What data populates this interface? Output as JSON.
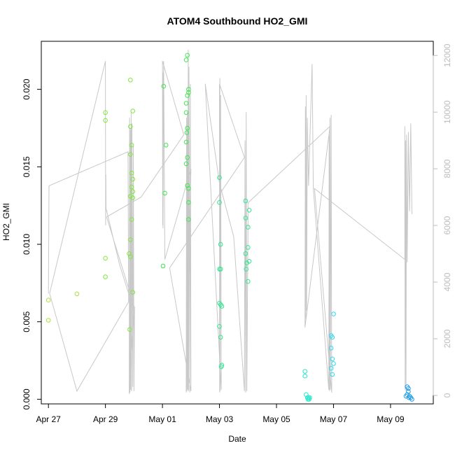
{
  "chart_data": {
    "type": "scatter",
    "title": "ATOM4 Southbound HO2_GMI",
    "xlabel": "Date",
    "ylabel": "HO2_GMI",
    "xlim": [
      "2018-04-26T18:00",
      "2018-05-10T12:00"
    ],
    "ylim": [
      -0.0003,
      0.0231
    ],
    "y2lim": [
      -300,
      12500
    ],
    "grid": false,
    "legend": "none",
    "x_ticks": [
      {
        "date": "2018-04-27",
        "label": "Apr 27"
      },
      {
        "date": "2018-04-29",
        "label": "Apr 29"
      },
      {
        "date": "2018-05-01",
        "label": "May 01"
      },
      {
        "date": "2018-05-03",
        "label": "May 03"
      },
      {
        "date": "2018-05-05",
        "label": "May 05"
      },
      {
        "date": "2018-05-07",
        "label": "May 07"
      },
      {
        "date": "2018-05-09",
        "label": "May 09"
      }
    ],
    "y_ticks": [
      {
        "value": 0.0,
        "label": "0.000"
      },
      {
        "value": 0.005,
        "label": "0.005"
      },
      {
        "value": 0.01,
        "label": "0.010"
      },
      {
        "value": 0.015,
        "label": "0.015"
      },
      {
        "value": 0.02,
        "label": "0.020"
      }
    ],
    "y2_ticks": [
      {
        "value": 0,
        "label": "0"
      },
      {
        "value": 2000,
        "label": "2000"
      },
      {
        "value": 4000,
        "label": "4000"
      },
      {
        "value": 6000,
        "label": "6000"
      },
      {
        "value": 8000,
        "label": "8000"
      },
      {
        "value": 10000,
        "label": "10000"
      },
      {
        "value": 12000,
        "label": "12000"
      }
    ],
    "colors": {
      "altitude_line": "#c8c8c8",
      "axis": "#000000",
      "right_axis": "#bdbdbd",
      "point_palette": [
        "#a8e23c",
        "#7fe83a",
        "#3ee84e",
        "#2ee890",
        "#26e8c8",
        "#2ed8f0",
        "#1a9ae8"
      ]
    },
    "altitude_series": [
      [
        "2018-04-27T00:00",
        3600
      ],
      [
        "2018-04-27T00:30",
        7400
      ],
      [
        "2018-04-29T19:00",
        8600
      ],
      [
        "2018-04-29T19:30",
        3300
      ],
      [
        "2018-04-28T00:00",
        150
      ],
      [
        "2018-04-27T01:00",
        3600
      ],
      [
        "2018-04-29T00:00",
        11800
      ],
      [
        "2018-04-29T00:10",
        6000
      ],
      [
        "2018-04-29T00:20",
        7800
      ],
      [
        "2018-04-29T00:30",
        6600
      ],
      [
        "2018-04-29T12:00",
        4600
      ],
      [
        "2018-04-30T00:00",
        3000
      ],
      [
        "2018-04-29T20:00",
        50
      ],
      [
        "2018-04-29T20:20",
        9800
      ],
      [
        "2018-04-29T20:40",
        100
      ],
      [
        "2018-04-29T21:00",
        9400
      ],
      [
        "2018-04-29T21:20",
        200
      ],
      [
        "2018-04-29T21:40",
        10000
      ],
      [
        "2018-04-29T22:00",
        150
      ],
      [
        "2018-04-29T22:20",
        9600
      ],
      [
        "2018-04-29T23:00",
        300
      ],
      [
        "2018-04-29T23:30",
        8800
      ],
      [
        "2018-04-30T00:00",
        150
      ],
      [
        "2018-04-30T00:30",
        3100
      ],
      [
        "2018-04-29T01:00",
        6300
      ],
      [
        "2018-04-30T06:00",
        7000
      ],
      [
        "2018-05-01T18:00",
        9200
      ],
      [
        "2018-05-01T00:00",
        11800
      ],
      [
        "2018-05-01T00:10",
        6000
      ],
      [
        "2018-05-01T00:20",
        11400
      ],
      [
        "2018-05-01T00:30",
        5900
      ],
      [
        "2018-05-01T01:00",
        11800
      ],
      [
        "2018-05-01T02:00",
        4800
      ],
      [
        "2018-05-02T00:00",
        8000
      ],
      [
        "2018-05-01T20:00",
        100
      ],
      [
        "2018-05-01T20:20",
        9800
      ],
      [
        "2018-05-01T20:40",
        150
      ],
      [
        "2018-05-01T21:00",
        10000
      ],
      [
        "2018-05-01T21:20",
        200
      ],
      [
        "2018-05-01T21:40",
        12200
      ],
      [
        "2018-05-01T22:00",
        150
      ],
      [
        "2018-05-01T22:20",
        11600
      ],
      [
        "2018-05-01T23:00",
        100
      ],
      [
        "2018-05-01T23:30",
        11000
      ],
      [
        "2018-05-02T00:00",
        150
      ],
      [
        "2018-05-01T06:00",
        4500
      ],
      [
        "2018-05-03T21:00",
        8400
      ],
      [
        "2018-05-03T00:00",
        11000
      ],
      [
        "2018-05-03T00:10",
        100
      ],
      [
        "2018-05-03T00:20",
        11200
      ],
      [
        "2018-05-03T00:30",
        150
      ],
      [
        "2018-05-03T01:00",
        10600
      ],
      [
        "2018-05-03T01:30",
        200
      ],
      [
        "2018-05-02T12:00",
        11000
      ],
      [
        "2018-05-03T00:00",
        7500
      ],
      [
        "2018-05-03T12:00",
        5600
      ],
      [
        "2018-05-03T21:00",
        150
      ],
      [
        "2018-05-03T21:30",
        9000
      ],
      [
        "2018-05-03T22:00",
        100
      ],
      [
        "2018-05-03T22:30",
        10000
      ],
      [
        "2018-05-03T23:00",
        150
      ],
      [
        "2018-05-04T00:00",
        5900
      ],
      [
        "2018-05-04T00:00",
        6800
      ],
      [
        "2018-05-06T21:00",
        9500
      ],
      [
        "2018-05-06T00:00",
        2400
      ],
      [
        "2018-05-06T00:20",
        10200
      ],
      [
        "2018-05-06T00:40",
        2700
      ],
      [
        "2018-05-06T01:00",
        10600
      ],
      [
        "2018-05-06T01:20",
        3000
      ],
      [
        "2018-05-06T02:00",
        9800
      ],
      [
        "2018-05-06T03:00",
        7400
      ],
      [
        "2018-05-06T06:00",
        11700
      ],
      [
        "2018-05-06T07:00",
        7300
      ],
      [
        "2018-05-06T20:00",
        200
      ],
      [
        "2018-05-06T20:20",
        9200
      ],
      [
        "2018-05-06T20:40",
        150
      ],
      [
        "2018-05-06T21:00",
        9800
      ],
      [
        "2018-05-06T21:20",
        200
      ],
      [
        "2018-05-06T22:00",
        9900
      ],
      [
        "2018-05-06T22:30",
        100
      ],
      [
        "2018-05-06T08:00",
        7300
      ],
      [
        "2018-05-09T12:00",
        4800
      ],
      [
        "2018-05-09T12:00",
        9500
      ],
      [
        "2018-05-09T12:20",
        200
      ],
      [
        "2018-05-09T12:40",
        9000
      ],
      [
        "2018-05-09T13:00",
        150
      ],
      [
        "2018-05-09T13:30",
        9200
      ],
      [
        "2018-05-09T14:00",
        4700
      ],
      [
        "2018-05-09T15:00",
        9300
      ],
      [
        "2018-05-09T16:00",
        6500
      ],
      [
        "2018-05-09T17:00",
        9600
      ],
      [
        "2018-05-09T18:00",
        6400
      ]
    ],
    "points": [
      {
        "x": "2018-04-27T00:00",
        "y": 0.0064
      },
      {
        "x": "2018-04-27T00:00",
        "y": 0.0051
      },
      {
        "x": "2018-04-28T00:00",
        "y": 0.0068
      },
      {
        "x": "2018-04-29T00:00",
        "y": 0.0185
      },
      {
        "x": "2018-04-29T00:00",
        "y": 0.018
      },
      {
        "x": "2018-04-29T00:00",
        "y": 0.0091
      },
      {
        "x": "2018-04-29T00:00",
        "y": 0.0079
      },
      {
        "x": "2018-04-29T21:00",
        "y": 0.0206
      },
      {
        "x": "2018-04-29T23:00",
        "y": 0.0186
      },
      {
        "x": "2018-04-29T21:00",
        "y": 0.0176
      },
      {
        "x": "2018-04-29T22:00",
        "y": 0.0164
      },
      {
        "x": "2018-04-29T21:00",
        "y": 0.0158
      },
      {
        "x": "2018-04-29T22:00",
        "y": 0.0146
      },
      {
        "x": "2018-04-29T23:00",
        "y": 0.0142
      },
      {
        "x": "2018-04-29T22:00",
        "y": 0.0137
      },
      {
        "x": "2018-04-29T23:00",
        "y": 0.0134
      },
      {
        "x": "2018-04-29T21:00",
        "y": 0.0131
      },
      {
        "x": "2018-04-29T23:00",
        "y": 0.013
      },
      {
        "x": "2018-04-29T22:00",
        "y": 0.0116
      },
      {
        "x": "2018-04-29T21:00",
        "y": 0.0103
      },
      {
        "x": "2018-04-29T20:00",
        "y": 0.0094
      },
      {
        "x": "2018-04-29T21:00",
        "y": 0.0092
      },
      {
        "x": "2018-04-29T23:00",
        "y": 0.0069
      },
      {
        "x": "2018-04-29T20:30",
        "y": 0.0045
      },
      {
        "x": "2018-05-01T01:00",
        "y": 0.0202
      },
      {
        "x": "2018-05-01T03:00",
        "y": 0.0164
      },
      {
        "x": "2018-05-01T02:00",
        "y": 0.0133
      },
      {
        "x": "2018-05-01T00:30",
        "y": 0.0086
      },
      {
        "x": "2018-05-01T21:00",
        "y": 0.0222
      },
      {
        "x": "2018-05-01T20:00",
        "y": 0.0219
      },
      {
        "x": "2018-05-01T22:00",
        "y": 0.02
      },
      {
        "x": "2018-05-01T22:00",
        "y": 0.0198
      },
      {
        "x": "2018-05-01T21:00",
        "y": 0.0196
      },
      {
        "x": "2018-05-01T20:00",
        "y": 0.0191
      },
      {
        "x": "2018-05-01T20:00",
        "y": 0.0185
      },
      {
        "x": "2018-05-01T21:00",
        "y": 0.0175
      },
      {
        "x": "2018-05-01T20:30",
        "y": 0.0172
      },
      {
        "x": "2018-05-01T20:00",
        "y": 0.0166
      },
      {
        "x": "2018-05-01T21:00",
        "y": 0.0156
      },
      {
        "x": "2018-05-01T20:00",
        "y": 0.0152
      },
      {
        "x": "2018-05-01T21:00",
        "y": 0.0138
      },
      {
        "x": "2018-05-01T22:00",
        "y": 0.0136
      },
      {
        "x": "2018-05-01T22:00",
        "y": 0.0127
      },
      {
        "x": "2018-05-01T22:00",
        "y": 0.0116
      },
      {
        "x": "2018-05-03T00:00",
        "y": 0.0143
      },
      {
        "x": "2018-05-03T00:00",
        "y": 0.0127
      },
      {
        "x": "2018-05-03T01:00",
        "y": 0.01
      },
      {
        "x": "2018-05-03T00:00",
        "y": 0.0084
      },
      {
        "x": "2018-05-03T01:00",
        "y": 0.0084
      },
      {
        "x": "2018-05-03T00:00",
        "y": 0.0062
      },
      {
        "x": "2018-05-03T01:00",
        "y": 0.0061
      },
      {
        "x": "2018-05-03T02:00",
        "y": 0.006
      },
      {
        "x": "2018-05-03T00:00",
        "y": 0.0047
      },
      {
        "x": "2018-05-03T01:00",
        "y": 0.004
      },
      {
        "x": "2018-05-03T02:00",
        "y": 0.0022
      },
      {
        "x": "2018-05-03T01:30",
        "y": 0.0021
      },
      {
        "x": "2018-05-03T22:00",
        "y": 0.0128
      },
      {
        "x": "2018-05-04T01:00",
        "y": 0.0122
      },
      {
        "x": "2018-05-03T22:00",
        "y": 0.0117
      },
      {
        "x": "2018-05-04T00:00",
        "y": 0.0111
      },
      {
        "x": "2018-05-04T00:00",
        "y": 0.0098
      },
      {
        "x": "2018-05-03T22:00",
        "y": 0.0094
      },
      {
        "x": "2018-05-04T01:00",
        "y": 0.0089
      },
      {
        "x": "2018-05-03T23:00",
        "y": 0.0088
      },
      {
        "x": "2018-05-03T22:30",
        "y": 0.0084
      },
      {
        "x": "2018-05-04T00:00",
        "y": 0.0076
      },
      {
        "x": "2018-05-06T00:00",
        "y": 0.0018
      },
      {
        "x": "2018-05-06T00:00",
        "y": 0.0015
      },
      {
        "x": "2018-05-06T01:00",
        "y": 0.0003
      },
      {
        "x": "2018-05-06T02:00",
        "y": 0.0001
      },
      {
        "x": "2018-05-06T03:00",
        "y": 0.0001
      },
      {
        "x": "2018-05-06T04:00",
        "y": 0.0001
      },
      {
        "x": "2018-05-06T02:30",
        "y": 0.0
      },
      {
        "x": "2018-05-06T03:30",
        "y": 0.0
      },
      {
        "x": "2018-05-07T00:00",
        "y": 0.0055
      },
      {
        "x": "2018-05-06T22:00",
        "y": 0.0041
      },
      {
        "x": "2018-05-06T23:00",
        "y": 0.004
      },
      {
        "x": "2018-05-06T22:00",
        "y": 0.0033
      },
      {
        "x": "2018-05-06T23:00",
        "y": 0.0026
      },
      {
        "x": "2018-05-07T00:00",
        "y": 0.0023
      },
      {
        "x": "2018-05-06T22:00",
        "y": 0.002
      },
      {
        "x": "2018-05-06T23:00",
        "y": 0.0016
      },
      {
        "x": "2018-05-09T14:00",
        "y": 0.0008
      },
      {
        "x": "2018-05-09T15:00",
        "y": 0.0007
      },
      {
        "x": "2018-05-09T15:00",
        "y": 0.0005
      },
      {
        "x": "2018-05-09T14:00",
        "y": 0.0003
      },
      {
        "x": "2018-05-09T16:00",
        "y": 0.0002
      },
      {
        "x": "2018-05-09T13:00",
        "y": 0.0002
      },
      {
        "x": "2018-05-09T15:30",
        "y": 0.0001
      },
      {
        "x": "2018-05-09T17:00",
        "y": 0.0001
      },
      {
        "x": "2018-05-09T18:00",
        "y": 0.0
      }
    ]
  }
}
